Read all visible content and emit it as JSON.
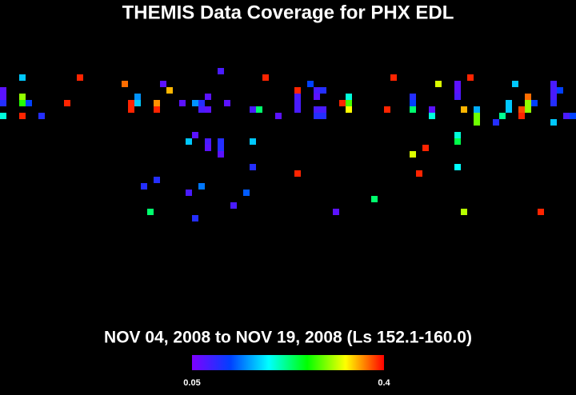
{
  "chart_data": {
    "type": "heatmap",
    "title": "THEMIS Data Coverage for PHX EDL",
    "subtitle": "NOV 04, 2008 to NOV 19, 2008 (Ls 152.1-160.0)",
    "x": [
      0,
      0,
      0,
      0,
      3,
      3,
      3,
      3,
      4,
      6,
      10,
      12,
      19,
      20,
      20,
      21,
      21,
      24,
      24,
      25,
      26,
      28,
      30,
      31,
      31,
      32,
      32,
      34,
      35,
      39,
      40,
      41,
      43,
      46,
      46,
      46,
      46,
      48,
      49,
      50,
      49,
      49,
      50,
      49,
      50,
      53,
      54,
      54,
      54,
      60,
      61,
      64,
      64,
      64,
      67,
      67,
      68,
      71,
      71,
      71,
      72,
      73,
      74,
      74,
      74,
      77,
      78,
      79,
      79,
      80,
      81,
      81,
      82,
      82,
      82,
      83,
      86,
      86,
      86,
      86,
      86,
      87,
      88,
      89,
      30,
      29,
      34,
      34,
      34,
      32,
      39,
      39,
      46,
      22,
      24,
      31,
      29,
      38,
      36,
      30,
      23,
      52,
      58,
      64,
      66,
      65,
      71,
      71,
      71,
      72,
      84,
      32
    ],
    "y": [
      3,
      4,
      5,
      7,
      1,
      4,
      5,
      7,
      5,
      7,
      5,
      1,
      2,
      5,
      6,
      4,
      5,
      5,
      6,
      2,
      3,
      5,
      5,
      5,
      6,
      4,
      6,
      0,
      5,
      6,
      6,
      1,
      7,
      4,
      5,
      6,
      3,
      2,
      3,
      3,
      4,
      6,
      6,
      7,
      7,
      5,
      4,
      5,
      6,
      6,
      1,
      4,
      5,
      6,
      6,
      7,
      2,
      2,
      3,
      4,
      6,
      1,
      6,
      7,
      8,
      8,
      7,
      6,
      5,
      2,
      6,
      7,
      4,
      5,
      6,
      5,
      2,
      3,
      4,
      5,
      8,
      3,
      7,
      7,
      10,
      11,
      11,
      12,
      13,
      11,
      11,
      15,
      16,
      18,
      17,
      18,
      19,
      19,
      21,
      23,
      22,
      22,
      20,
      13,
      12,
      16,
      15,
      10,
      11,
      22,
      22,
      12
    ],
    "values": [
      0.07,
      0.07,
      0.1,
      0.2,
      0.17,
      0.3,
      0.27,
      0.39,
      0.12,
      0.1,
      0.39,
      0.39,
      0.37,
      0.39,
      0.39,
      0.15,
      0.17,
      0.36,
      0.39,
      0.07,
      0.35,
      0.07,
      0.15,
      0.1,
      0.08,
      0.07,
      0.07,
      0.08,
      0.07,
      0.08,
      0.23,
      0.39,
      0.07,
      0.08,
      0.08,
      0.08,
      0.39,
      0.12,
      0.08,
      0.1,
      0.07,
      0.08,
      0.08,
      0.1,
      0.1,
      0.39,
      0.2,
      0.28,
      0.33,
      0.39,
      0.39,
      0.1,
      0.12,
      0.23,
      0.07,
      0.2,
      0.32,
      0.07,
      0.07,
      0.08,
      0.35,
      0.39,
      0.16,
      0.29,
      0.29,
      0.1,
      0.22,
      0.17,
      0.17,
      0.17,
      0.38,
      0.39,
      0.37,
      0.3,
      0.3,
      0.12,
      0.08,
      0.08,
      0.08,
      0.1,
      0.17,
      0.12,
      0.08,
      0.12,
      0.07,
      0.17,
      0.1,
      0.1,
      0.07,
      0.08,
      0.17,
      0.1,
      0.39,
      0.1,
      0.1,
      0.14,
      0.08,
      0.13,
      0.08,
      0.1,
      0.23,
      0.07,
      0.23,
      0.32,
      0.39,
      0.39,
      0.19,
      0.2,
      0.24,
      0.31,
      0.39,
      0.07
    ],
    "colormap": [
      "#7f00ff",
      "#0040ff",
      "#00ffff",
      "#00ff00",
      "#ffff00",
      "#ff0000"
    ],
    "clim": [
      0.05,
      0.4
    ],
    "cticks": [
      0.05,
      0.4
    ]
  }
}
